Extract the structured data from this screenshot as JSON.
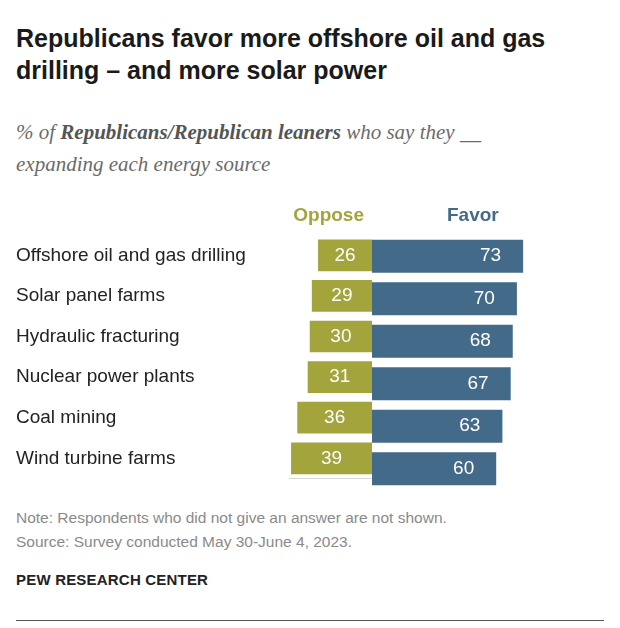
{
  "title": "Republicans favor more offshore oil and gas drilling – and more solar power",
  "subtitle": [
    "% of ",
    "Republicans/Republican leaners",
    " who say they __ expanding each energy source"
  ],
  "chart_data": [
    {
      "type": "bar",
      "orientation": "horizontal",
      "categories": [
        "Offshore oil and gas drilling",
        "Solar panel farms",
        "Hydraulic fracturing",
        "Nuclear power plants",
        "Coal mining",
        "Wind turbine farms"
      ],
      "series": [
        {
          "name": "Oppose",
          "color": "#a4a43d",
          "values": [
            26,
            29,
            30,
            31,
            36,
            39
          ]
        }
      ],
      "xlim": [
        40,
        0
      ],
      "grid": false,
      "data_labels": true,
      "tick_labels": "y"
    },
    {
      "type": "bar",
      "orientation": "horizontal",
      "categories": [
        "Offshore oil and gas drilling",
        "Solar panel farms",
        "Hydraulic fracturing",
        "Nuclear power plants",
        "Coal mining",
        "Wind turbine farms"
      ],
      "series": [
        {
          "name": "Favor",
          "color": "#436a88",
          "values": [
            73,
            70,
            68,
            67,
            63,
            60
          ]
        }
      ],
      "xlim": [
        0,
        100
      ],
      "grid": false,
      "data_labels": true,
      "tick_labels": false
    }
  ],
  "note": "Note: Respondents who did not give an answer are not shown.",
  "source": "Source: Survey conducted May 30-June 4, 2023.",
  "credit": "PEW RESEARCH CENTER"
}
